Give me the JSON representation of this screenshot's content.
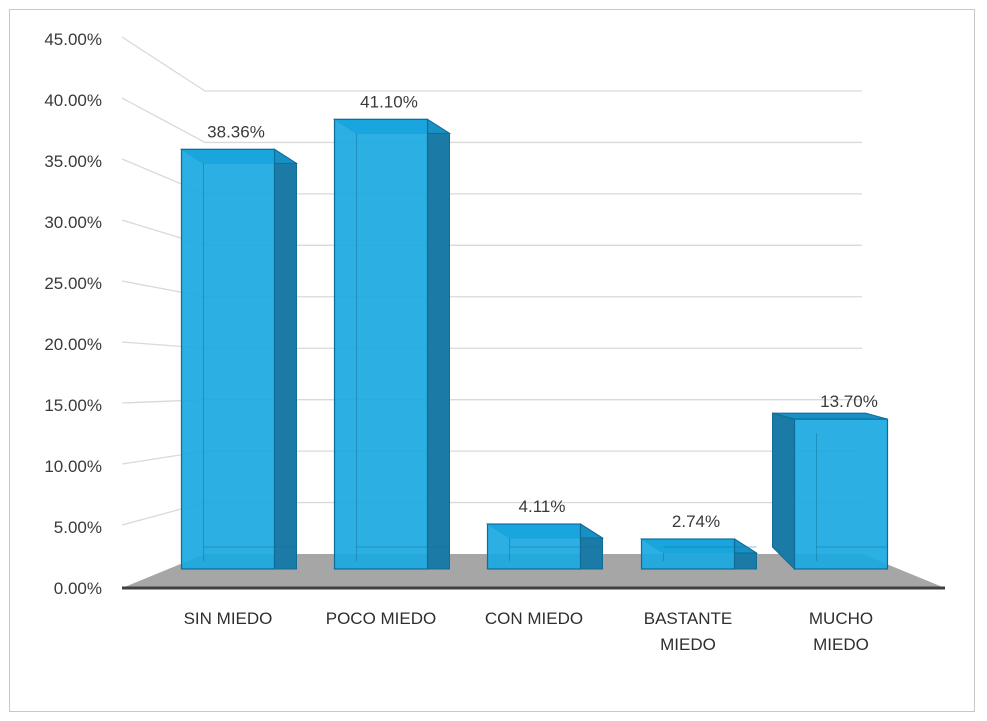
{
  "chart_data": {
    "type": "bar",
    "style": "3d-column",
    "categories": [
      [
        "SIN MIEDO"
      ],
      [
        "POCO MIEDO"
      ],
      [
        "CON MIEDO"
      ],
      [
        "BASTANTE",
        "MIEDO"
      ],
      [
        "MUCHO",
        "MIEDO"
      ]
    ],
    "values": [
      38.36,
      41.1,
      4.11,
      2.74,
      13.7
    ],
    "data_labels": [
      "38.36%",
      "41.10%",
      "4.11%",
      "2.74%",
      "13.70%"
    ],
    "y_ticks": [
      "0.00%",
      "5.00%",
      "10.00%",
      "15.00%",
      "20.00%",
      "25.00%",
      "30.00%",
      "35.00%",
      "40.00%",
      "45.00%"
    ],
    "ylim": [
      0,
      45
    ],
    "title": "",
    "xlabel": "",
    "ylabel": "",
    "grid": true,
    "legend": "none",
    "colors": {
      "bar_front": "#1aa8e0",
      "bar_side": "#1b7aa6",
      "bar_top": "#1890c4",
      "bar_edge": "#0e6d98",
      "floor": "#a6a6a6",
      "grid": "#d9d9d9",
      "axis": "#404040"
    }
  }
}
